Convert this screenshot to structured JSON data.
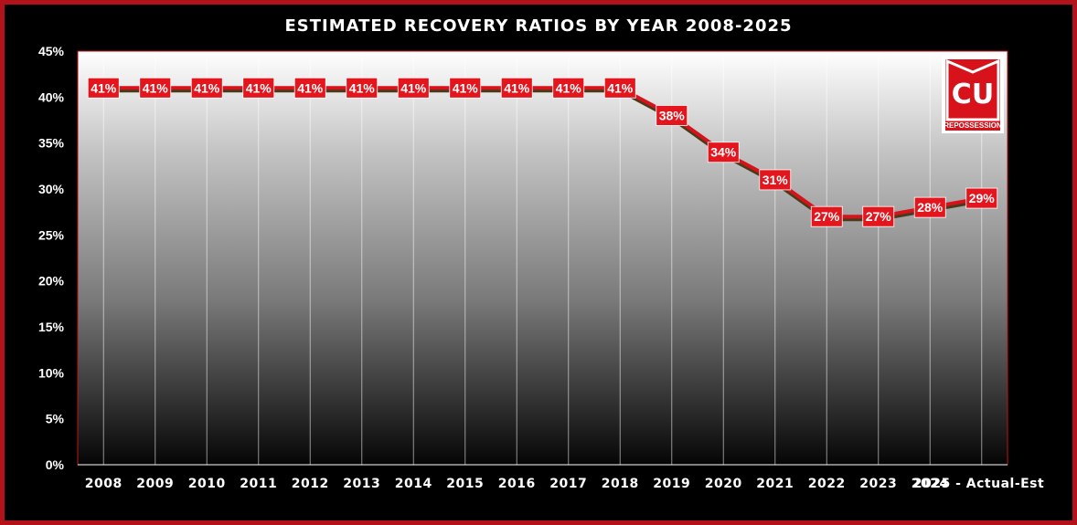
{
  "chart_data": {
    "type": "line",
    "title": "ESTIMATED RECOVERY RATIOS BY YEAR 2008-2025",
    "categories": [
      "2008",
      "2009",
      "2010",
      "2011",
      "2012",
      "2013",
      "2014",
      "2015",
      "2016",
      "2017",
      "2018",
      "2019",
      "2020",
      "2021",
      "2022",
      "2023",
      "2024",
      "2025 - Actual-Est"
    ],
    "values": [
      41,
      41,
      41,
      41,
      41,
      41,
      41,
      41,
      41,
      41,
      41,
      38,
      34,
      31,
      27,
      27,
      28,
      29
    ],
    "data_labels": [
      "41%",
      "41%",
      "41%",
      "41%",
      "41%",
      "41%",
      "41%",
      "41%",
      "41%",
      "41%",
      "41%",
      "38%",
      "34%",
      "31%",
      "27%",
      "27%",
      "28%",
      "29%"
    ],
    "ylim": [
      0,
      45
    ],
    "y_ticks": [
      "0%",
      "5%",
      "10%",
      "15%",
      "20%",
      "25%",
      "30%",
      "35%",
      "40%",
      "45%"
    ],
    "y_tick_values": [
      0,
      5,
      10,
      15,
      20,
      25,
      30,
      35,
      40,
      45
    ],
    "xlabel": "",
    "ylabel": "",
    "grid": true,
    "legend": "none"
  },
  "logo": {
    "monogram": "CU",
    "text": "REPOSSESSION"
  },
  "colors": {
    "line": "#d7121b",
    "line_shadow": "#4a3a1a",
    "label_bg": "#e3161e",
    "frame": "#b3121b",
    "plot_top": "#ffffff",
    "plot_bottom": "#050505"
  }
}
